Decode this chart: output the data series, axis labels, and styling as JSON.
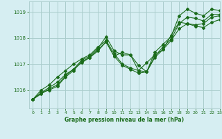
{
  "title": "Graphe pression niveau de la mer (hPa)",
  "background_color": "#d6eef2",
  "grid_color": "#aacccc",
  "line_color": "#1a6b1a",
  "xlim": [
    -0.5,
    23
  ],
  "ylim": [
    1015.3,
    1019.4
  ],
  "yticks": [
    1016,
    1017,
    1018,
    1019
  ],
  "xticks": [
    0,
    1,
    2,
    3,
    4,
    5,
    6,
    7,
    8,
    9,
    10,
    11,
    12,
    13,
    14,
    15,
    16,
    17,
    18,
    19,
    20,
    21,
    22,
    23
  ],
  "series": [
    [
      1015.65,
      1015.9,
      1016.0,
      1016.15,
      1016.5,
      1016.75,
      1017.1,
      1017.25,
      1017.55,
      1017.85,
      1017.3,
      1017.45,
      1017.35,
      1016.95,
      1016.7,
      1017.45,
      1017.75,
      1018.05,
      1018.85,
      1019.1,
      1018.95,
      1018.85,
      1019.1,
      1019.05
    ],
    [
      1015.65,
      1015.9,
      1016.1,
      1016.3,
      1016.6,
      1016.8,
      1017.15,
      1017.3,
      1017.6,
      1018.05,
      1017.5,
      1017.35,
      1017.35,
      1016.75,
      1016.7,
      1017.3,
      1017.65,
      1017.95,
      1018.55,
      1018.8,
      1018.75,
      1018.65,
      1018.9,
      1018.9
    ],
    [
      1015.65,
      1016.0,
      1016.2,
      1016.5,
      1016.75,
      1017.0,
      1017.2,
      1017.35,
      1017.65,
      1017.9,
      1017.4,
      1017.0,
      1016.85,
      1016.75,
      1017.05,
      1017.35,
      1017.55,
      1018.1,
      1018.6,
      1018.55,
      1018.5,
      1018.55,
      1018.8,
      1018.85
    ],
    [
      1015.65,
      1015.85,
      1016.05,
      1016.2,
      1016.55,
      1016.8,
      1017.05,
      1017.25,
      1017.5,
      1017.85,
      1017.3,
      1016.95,
      1016.8,
      1016.65,
      1016.7,
      1017.25,
      1017.55,
      1017.9,
      1018.35,
      1018.55,
      1018.45,
      1018.4,
      1018.6,
      1018.7
    ]
  ]
}
